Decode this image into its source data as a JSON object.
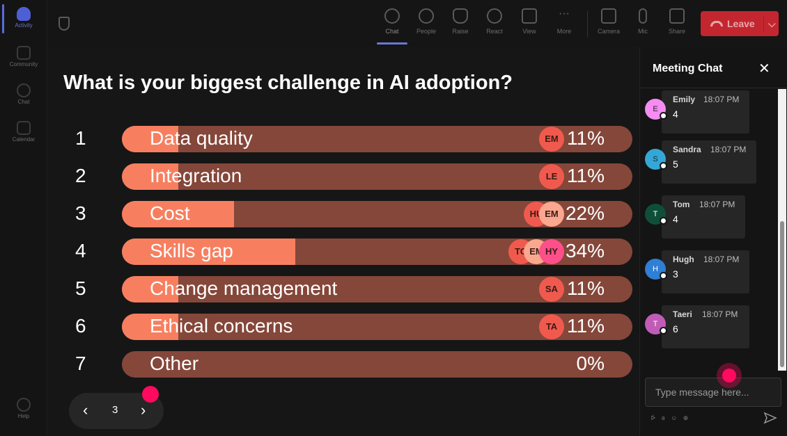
{
  "rail": {
    "items": [
      {
        "label": "Activity",
        "icon": "bell-icon",
        "active": true
      },
      {
        "label": "Community",
        "icon": "community-icon"
      },
      {
        "label": "Chat",
        "icon": "chat-icon"
      },
      {
        "label": "Calendar",
        "icon": "calendar-icon"
      },
      {
        "label": "Help",
        "icon": "help-icon"
      }
    ]
  },
  "toolbar": {
    "buttons": [
      {
        "label": "Chat",
        "icon": "chat-bubble-icon",
        "active": true
      },
      {
        "label": "People",
        "icon": "people-icon"
      },
      {
        "label": "Raise",
        "icon": "hand-icon"
      },
      {
        "label": "React",
        "icon": "smiley-icon"
      },
      {
        "label": "View",
        "icon": "grid-icon"
      },
      {
        "label": "More",
        "icon": "ellipsis-icon"
      },
      {
        "label": "Camera",
        "icon": "camera-off-icon"
      },
      {
        "label": "Mic",
        "icon": "mic-icon"
      },
      {
        "label": "Share",
        "icon": "share-icon"
      }
    ],
    "leave_label": "Leave",
    "leave_chevron": "⌵",
    "leave_color": "#c4262f"
  },
  "poll": {
    "question": "What is your biggest challenge in AI adoption?",
    "fill_color": "#f77f60",
    "track_color": "#84473a",
    "options": [
      {
        "num": "1",
        "label": "Data quality",
        "pct_text": "11%",
        "fraction": 0.11,
        "voters": [
          "EM"
        ]
      },
      {
        "num": "2",
        "label": "Integration",
        "pct_text": "11%",
        "fraction": 0.11,
        "voters": [
          "LE"
        ]
      },
      {
        "num": "3",
        "label": "Cost",
        "pct_text": "22%",
        "fraction": 0.22,
        "voters": [
          "HU",
          "EM"
        ]
      },
      {
        "num": "4",
        "label": "Skills gap",
        "pct_text": "34%",
        "fraction": 0.34,
        "voters": [
          "TO",
          "EM",
          "HY"
        ]
      },
      {
        "num": "5",
        "label": "Change management",
        "pct_text": "11%",
        "fraction": 0.11,
        "voters": [
          "SA"
        ]
      },
      {
        "num": "6",
        "label": "Ethical concerns",
        "pct_text": "11%",
        "fraction": 0.11,
        "voters": [
          "TA"
        ]
      },
      {
        "num": "7",
        "label": "Other",
        "pct_text": "0%",
        "fraction": 0.0,
        "voters": []
      }
    ]
  },
  "pager": {
    "prev": "‹",
    "page": "3",
    "next": "›"
  },
  "chat": {
    "title": "Meeting Chat",
    "close": "✕",
    "messages": [
      {
        "initial": "E",
        "name": "Emily",
        "time": "18:07 PM",
        "text": "4",
        "color": "#f48cf2",
        "text_color": "#3a1a3a"
      },
      {
        "initial": "S",
        "name": "Sandra",
        "time": "18:07 PM",
        "text": "5",
        "color": "#35a7d6",
        "text_color": "#0e2a38"
      },
      {
        "initial": "T",
        "name": "Tom",
        "time": "18:07 PM",
        "text": "4",
        "color": "#0f4f3a",
        "text_color": "#ffffff"
      },
      {
        "initial": "H",
        "name": "Hugh",
        "time": "18:07 PM",
        "text": "3",
        "color": "#2f7fd4",
        "text_color": "#ffffff"
      },
      {
        "initial": "T",
        "name": "Taeri",
        "time": "18:07 PM",
        "text": "6",
        "color": "#c05cb8",
        "text_color": "#ffffff"
      }
    ],
    "input_placeholder": "Type message here...",
    "format_icons": "ᢰ ɞ ☺ ⊕"
  }
}
